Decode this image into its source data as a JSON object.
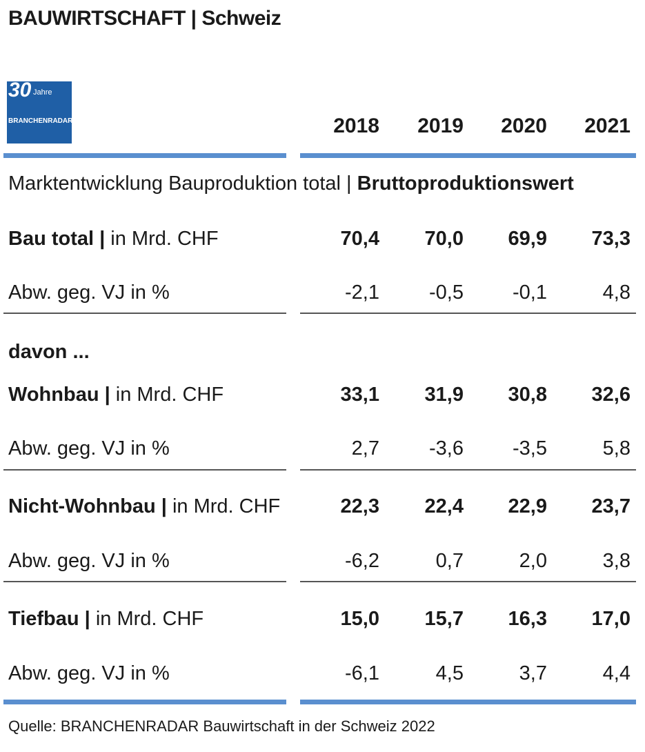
{
  "header": {
    "title": "BAUWIRTSCHAFT | Schweiz"
  },
  "logo": {
    "number": "30",
    "jahre": "Jahre",
    "brand": "BRANCHENRADAR"
  },
  "years": [
    "2018",
    "2019",
    "2020",
    "2021"
  ],
  "subtitle": {
    "normal": "Marktentwicklung Bauproduktion total | ",
    "bold": "Bruttoproduktionswert"
  },
  "davon": "davon ...",
  "rows": [
    {
      "label_bold": "Bau total |",
      "label_normal": " in Mrd. CHF",
      "values": [
        "70,4",
        "70,0",
        "69,9",
        "73,3"
      ]
    },
    {
      "label_normal": "Abw. geg. VJ in %",
      "values": [
        "-2,1",
        "-0,5",
        "-0,1",
        "4,8"
      ]
    },
    {
      "label_bold": "Wohnbau |",
      "label_normal": " in Mrd. CHF",
      "values": [
        "33,1",
        "31,9",
        "30,8",
        "32,6"
      ]
    },
    {
      "label_normal": "Abw. geg. VJ in %",
      "values": [
        "2,7",
        "-3,6",
        "-3,5",
        "5,8"
      ]
    },
    {
      "label_bold": "Nicht-Wohnbau |",
      "label_normal": " in Mrd. CHF",
      "values": [
        "22,3",
        "22,4",
        "22,9",
        "23,7"
      ]
    },
    {
      "label_normal": "Abw. geg. VJ in %",
      "values": [
        "-6,2",
        "0,7",
        "2,0",
        "3,8"
      ]
    },
    {
      "label_bold": "Tiefbau |",
      "label_normal": " in Mrd. CHF",
      "values": [
        "15,0",
        "15,7",
        "16,3",
        "17,0"
      ]
    },
    {
      "label_normal": "Abw. geg. VJ in %",
      "values": [
        "-6,1",
        "4,5",
        "3,7",
        "4,4"
      ]
    }
  ],
  "source": "Quelle: BRANCHENRADAR Bauwirtschaft in der Schweiz 2022",
  "colors": {
    "accent_bar": "#5a8fcf",
    "logo_bg": "#1f5fa6"
  }
}
